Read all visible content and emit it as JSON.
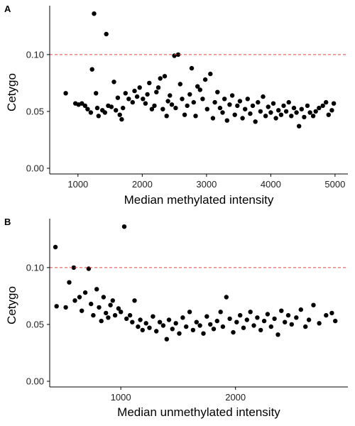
{
  "chart_data": [
    {
      "panel_tag": "A",
      "type": "scatter",
      "title": "",
      "xlabel": "Median methylated intensity",
      "ylabel": "Cetygo",
      "xlim": [
        560,
        5200
      ],
      "ylim": [
        -0.005,
        0.143
      ],
      "xticks": [
        1000,
        2000,
        3000,
        4000,
        5000
      ],
      "xtick_labels": [
        "1000",
        "2000",
        "3000",
        "4000",
        "5000"
      ],
      "yticks": [
        0.0,
        0.05,
        0.1
      ],
      "ytick_labels": [
        "0.00",
        "0.05",
        "0.10"
      ],
      "reference_line": {
        "y": 0.1,
        "color": "#e8413f",
        "style": "dashed"
      },
      "grid": false,
      "point_color": "#000000",
      "points": [
        [
          810,
          0.066
        ],
        [
          960,
          0.057
        ],
        [
          1010,
          0.056
        ],
        [
          1060,
          0.057
        ],
        [
          1110,
          0.055
        ],
        [
          1150,
          0.052
        ],
        [
          1200,
          0.049
        ],
        [
          1220,
          0.087
        ],
        [
          1250,
          0.136
        ],
        [
          1280,
          0.066
        ],
        [
          1300,
          0.053
        ],
        [
          1320,
          0.046
        ],
        [
          1380,
          0.051
        ],
        [
          1420,
          0.049
        ],
        [
          1440,
          0.118
        ],
        [
          1470,
          0.055
        ],
        [
          1520,
          0.054
        ],
        [
          1560,
          0.076
        ],
        [
          1590,
          0.051
        ],
        [
          1620,
          0.062
        ],
        [
          1650,
          0.047
        ],
        [
          1680,
          0.043
        ],
        [
          1700,
          0.053
        ],
        [
          1740,
          0.066
        ],
        [
          1790,
          0.061
        ],
        [
          1850,
          0.058
        ],
        [
          1880,
          0.068
        ],
        [
          1920,
          0.063
        ],
        [
          1960,
          0.071
        ],
        [
          2010,
          0.061
        ],
        [
          2050,
          0.057
        ],
        [
          2080,
          0.065
        ],
        [
          2110,
          0.075
        ],
        [
          2150,
          0.052
        ],
        [
          2190,
          0.055
        ],
        [
          2220,
          0.067
        ],
        [
          2250,
          0.071
        ],
        [
          2280,
          0.079
        ],
        [
          2320,
          0.052
        ],
        [
          2350,
          0.081
        ],
        [
          2380,
          0.046
        ],
        [
          2400,
          0.059
        ],
        [
          2430,
          0.064
        ],
        [
          2460,
          0.056
        ],
        [
          2500,
          0.099
        ],
        [
          2520,
          0.053
        ],
        [
          2560,
          0.1
        ],
        [
          2590,
          0.074
        ],
        [
          2620,
          0.061
        ],
        [
          2660,
          0.047
        ],
        [
          2700,
          0.055
        ],
        [
          2740,
          0.065
        ],
        [
          2770,
          0.088
        ],
        [
          2800,
          0.058
        ],
        [
          2830,
          0.046
        ],
        [
          2860,
          0.072
        ],
        [
          2900,
          0.069
        ],
        [
          2940,
          0.061
        ],
        [
          2980,
          0.078
        ],
        [
          3010,
          0.052
        ],
        [
          3060,
          0.083
        ],
        [
          3100,
          0.044
        ],
        [
          3130,
          0.058
        ],
        [
          3170,
          0.067
        ],
        [
          3210,
          0.053
        ],
        [
          3250,
          0.049
        ],
        [
          3280,
          0.061
        ],
        [
          3320,
          0.042
        ],
        [
          3360,
          0.056
        ],
        [
          3400,
          0.064
        ],
        [
          3440,
          0.047
        ],
        [
          3480,
          0.055
        ],
        [
          3520,
          0.059
        ],
        [
          3560,
          0.044
        ],
        [
          3600,
          0.052
        ],
        [
          3640,
          0.061
        ],
        [
          3680,
          0.048
        ],
        [
          3720,
          0.055
        ],
        [
          3760,
          0.041
        ],
        [
          3800,
          0.058
        ],
        [
          3840,
          0.05
        ],
        [
          3880,
          0.063
        ],
        [
          3920,
          0.046
        ],
        [
          3960,
          0.054
        ],
        [
          4000,
          0.049
        ],
        [
          4040,
          0.057
        ],
        [
          4080,
          0.044
        ],
        [
          4120,
          0.051
        ],
        [
          4160,
          0.047
        ],
        [
          4200,
          0.055
        ],
        [
          4240,
          0.05
        ],
        [
          4280,
          0.058
        ],
        [
          4320,
          0.046
        ],
        [
          4360,
          0.053
        ],
        [
          4400,
          0.049
        ],
        [
          4440,
          0.037
        ],
        [
          4480,
          0.052
        ],
        [
          4520,
          0.045
        ],
        [
          4570,
          0.055
        ],
        [
          4610,
          0.049
        ],
        [
          4660,
          0.046
        ],
        [
          4700,
          0.05
        ],
        [
          4750,
          0.053
        ],
        [
          4810,
          0.055
        ],
        [
          4860,
          0.058
        ],
        [
          4900,
          0.047
        ],
        [
          4950,
          0.051
        ],
        [
          4980,
          0.057
        ]
      ]
    },
    {
      "panel_tag": "B",
      "type": "scatter",
      "title": "",
      "xlabel": "Median unmethylated intensity",
      "ylabel": "Cetygo",
      "xlim": [
        380,
        2980
      ],
      "ylim": [
        -0.005,
        0.143
      ],
      "xticks": [
        1000,
        2000
      ],
      "xtick_labels": [
        "1000",
        "2000"
      ],
      "yticks": [
        0.0,
        0.05,
        0.1
      ],
      "ytick_labels": [
        "0.00",
        "0.05",
        "0.10"
      ],
      "reference_line": {
        "y": 0.1,
        "color": "#e8413f",
        "style": "dashed"
      },
      "grid": false,
      "point_color": "#000000",
      "points": [
        [
          430,
          0.118
        ],
        [
          440,
          0.066
        ],
        [
          520,
          0.065
        ],
        [
          550,
          0.087
        ],
        [
          590,
          0.1
        ],
        [
          600,
          0.071
        ],
        [
          640,
          0.074
        ],
        [
          660,
          0.062
        ],
        [
          690,
          0.078
        ],
        [
          720,
          0.099
        ],
        [
          740,
          0.068
        ],
        [
          760,
          0.058
        ],
        [
          790,
          0.081
        ],
        [
          810,
          0.065
        ],
        [
          830,
          0.053
        ],
        [
          850,
          0.074
        ],
        [
          870,
          0.06
        ],
        [
          890,
          0.056
        ],
        [
          910,
          0.067
        ],
        [
          930,
          0.071
        ],
        [
          950,
          0.058
        ],
        [
          980,
          0.064
        ],
        [
          1000,
          0.061
        ],
        [
          1030,
          0.136
        ],
        [
          1050,
          0.055
        ],
        [
          1080,
          0.058
        ],
        [
          1100,
          0.052
        ],
        [
          1120,
          0.071
        ],
        [
          1150,
          0.048
        ],
        [
          1170,
          0.054
        ],
        [
          1190,
          0.045
        ],
        [
          1220,
          0.051
        ],
        [
          1250,
          0.047
        ],
        [
          1280,
          0.057
        ],
        [
          1310,
          0.044
        ],
        [
          1340,
          0.052
        ],
        [
          1370,
          0.049
        ],
        [
          1400,
          0.037
        ],
        [
          1420,
          0.054
        ],
        [
          1450,
          0.046
        ],
        [
          1480,
          0.051
        ],
        [
          1510,
          0.042
        ],
        [
          1540,
          0.056
        ],
        [
          1570,
          0.048
        ],
        [
          1600,
          0.061
        ],
        [
          1630,
          0.045
        ],
        [
          1660,
          0.052
        ],
        [
          1690,
          0.049
        ],
        [
          1720,
          0.042
        ],
        [
          1750,
          0.057
        ],
        [
          1780,
          0.05
        ],
        [
          1810,
          0.046
        ],
        [
          1840,
          0.053
        ],
        [
          1870,
          0.061
        ],
        [
          1890,
          0.048
        ],
        [
          1920,
          0.074
        ],
        [
          1950,
          0.055
        ],
        [
          1980,
          0.043
        ],
        [
          2010,
          0.052
        ],
        [
          2040,
          0.058
        ],
        [
          2070,
          0.047
        ],
        [
          2100,
          0.054
        ],
        [
          2130,
          0.061
        ],
        [
          2160,
          0.049
        ],
        [
          2190,
          0.056
        ],
        [
          2220,
          0.045
        ],
        [
          2250,
          0.053
        ],
        [
          2280,
          0.059
        ],
        [
          2310,
          0.048
        ],
        [
          2340,
          0.055
        ],
        [
          2370,
          0.041
        ],
        [
          2400,
          0.062
        ],
        [
          2430,
          0.052
        ],
        [
          2460,
          0.058
        ],
        [
          2490,
          0.05
        ],
        [
          2530,
          0.056
        ],
        [
          2570,
          0.063
        ],
        [
          2610,
          0.048
        ],
        [
          2640,
          0.054
        ],
        [
          2680,
          0.067
        ],
        [
          2730,
          0.051
        ],
        [
          2790,
          0.058
        ],
        [
          2840,
          0.06
        ],
        [
          2870,
          0.053
        ]
      ]
    }
  ]
}
